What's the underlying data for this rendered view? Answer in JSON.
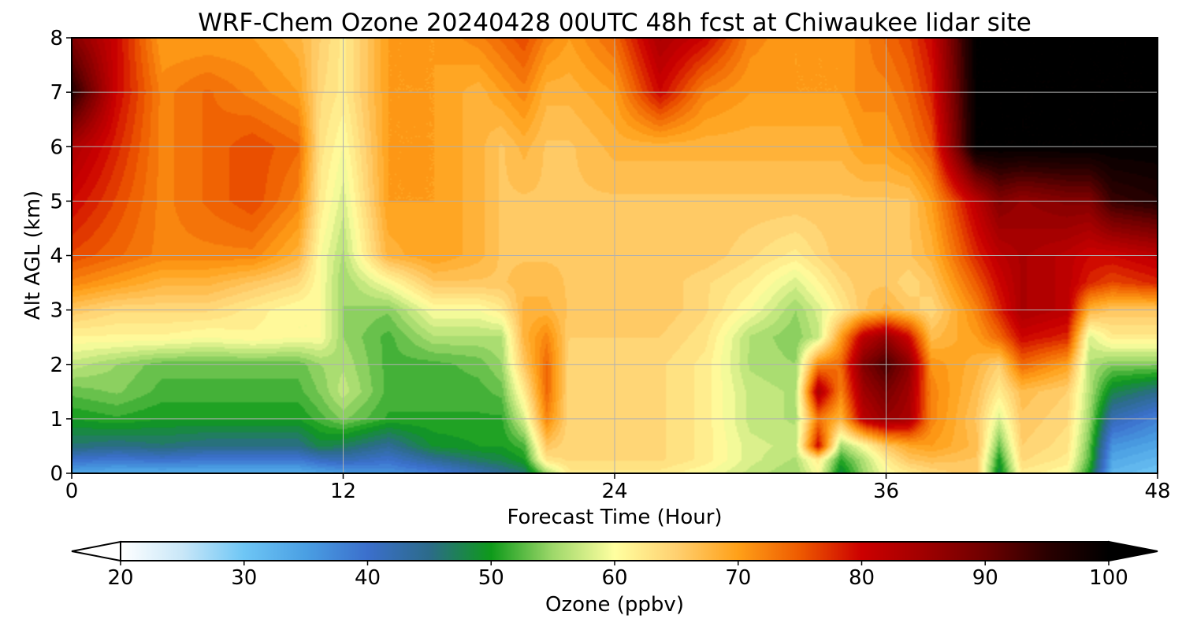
{
  "chart_data": {
    "type": "heatmap",
    "title": "WRF-Chem Ozone  20240428 00UTC 48h fcst at Chiwaukee lidar site",
    "xlabel": "Forecast Time (Hour)",
    "ylabel": "Alt AGL (km)",
    "xlim": [
      0,
      48
    ],
    "ylim": [
      0,
      8
    ],
    "x_ticks": [
      0,
      12,
      24,
      36,
      48
    ],
    "y_ticks": [
      0,
      1,
      2,
      3,
      4,
      5,
      6,
      7,
      8
    ],
    "grid": true,
    "colorbar": {
      "label": "Ozone  (ppbv)",
      "orientation": "horizontal",
      "placement": "bottom",
      "min": 20,
      "max": 100,
      "extend": "both",
      "ticks": [
        20,
        30,
        40,
        50,
        60,
        70,
        80,
        90,
        100
      ],
      "color_stops": [
        [
          20,
          "#ffffff"
        ],
        [
          25,
          "#c9e7f8"
        ],
        [
          30,
          "#6ec6f5"
        ],
        [
          35,
          "#4a9fe3"
        ],
        [
          40,
          "#3b6fcc"
        ],
        [
          45,
          "#2c6b8a"
        ],
        [
          50,
          "#0e9a1a"
        ],
        [
          55,
          "#9ed86a"
        ],
        [
          60,
          "#ffffa0"
        ],
        [
          65,
          "#ffd070"
        ],
        [
          70,
          "#ffa018"
        ],
        [
          75,
          "#ee5a00"
        ],
        [
          80,
          "#cc0000"
        ],
        [
          85,
          "#a00000"
        ],
        [
          90,
          "#6e0000"
        ],
        [
          95,
          "#2a0000"
        ],
        [
          100,
          "#000000"
        ]
      ]
    },
    "x": [
      0,
      2,
      4,
      6,
      8,
      10,
      11,
      12,
      14,
      16,
      18,
      19,
      20,
      21,
      22,
      24,
      26,
      28,
      30,
      32,
      33,
      34,
      35,
      36,
      37,
      38,
      40,
      41,
      42,
      44,
      45,
      46,
      48
    ],
    "y": [
      0,
      0.25,
      0.5,
      1,
      1.5,
      2,
      2.5,
      3,
      3.5,
      4,
      5,
      6,
      7,
      8
    ],
    "z": [
      [
        34,
        33,
        33,
        33,
        33,
        33,
        34,
        35,
        36,
        38,
        42,
        44,
        46,
        55,
        62,
        62,
        62,
        60,
        57,
        55,
        60,
        48,
        55,
        60,
        62,
        64,
        66,
        48,
        62,
        60,
        50,
        32,
        30
      ],
      [
        40,
        39,
        40,
        39,
        39,
        39,
        41,
        42,
        40,
        44,
        47,
        48,
        50,
        63,
        64,
        64,
        64,
        62,
        58,
        56,
        62,
        51,
        56,
        62,
        66,
        67,
        66,
        50,
        64,
        62,
        52,
        34,
        32
      ],
      [
        46,
        45,
        46,
        45,
        45,
        45,
        48,
        47,
        44,
        49,
        50,
        50,
        52,
        66,
        64,
        64,
        64,
        62,
        58,
        57,
        80,
        55,
        60,
        66,
        69,
        70,
        67,
        53,
        65,
        63,
        53,
        36,
        34
      ],
      [
        50,
        51,
        50,
        50,
        50,
        50,
        52,
        54,
        51,
        51,
        51,
        51,
        58,
        72,
        64,
        64,
        64,
        62,
        57,
        56,
        73,
        68,
        82,
        86,
        84,
        72,
        66,
        58,
        66,
        64,
        55,
        42,
        38
      ],
      [
        53,
        54,
        52,
        52,
        52,
        52,
        54,
        57,
        52,
        52,
        52,
        53,
        62,
        74,
        64,
        64,
        64,
        62,
        57,
        56,
        84,
        72,
        85,
        89,
        85,
        72,
        67,
        62,
        67,
        65,
        56,
        48,
        45
      ],
      [
        57,
        55,
        53,
        53,
        53,
        53,
        55,
        56,
        52,
        52,
        53,
        55,
        66,
        74,
        64,
        64,
        64,
        62,
        56,
        55,
        72,
        74,
        88,
        93,
        87,
        71,
        68,
        65,
        74,
        70,
        56,
        54,
        54
      ],
      [
        61,
        61,
        61,
        60,
        61,
        60,
        60,
        55,
        52,
        56,
        56,
        56,
        68,
        72,
        65,
        65,
        65,
        63,
        56,
        54,
        57,
        70,
        82,
        86,
        80,
        67,
        70,
        74,
        80,
        78,
        58,
        62,
        62
      ],
      [
        66,
        64,
        64,
        64,
        62,
        60,
        60,
        55,
        54,
        60,
        60,
        62,
        68,
        68,
        66,
        66,
        66,
        64,
        60,
        55,
        58,
        62,
        66,
        68,
        66,
        64,
        72,
        78,
        84,
        82,
        68,
        66,
        66
      ],
      [
        72,
        70,
        68,
        68,
        66,
        64,
        60,
        55,
        60,
        66,
        66,
        66,
        67,
        67,
        66,
        66,
        66,
        64,
        62,
        58,
        61,
        64,
        66,
        66,
        64,
        66,
        75,
        80,
        84,
        82,
        78,
        76,
        78
      ],
      [
        76,
        74,
        72,
        72,
        72,
        68,
        60,
        56,
        68,
        70,
        68,
        66,
        66,
        66,
        66,
        66,
        66,
        66,
        64,
        62,
        64,
        66,
        66,
        66,
        66,
        68,
        78,
        82,
        84,
        82,
        80,
        80,
        82
      ],
      [
        80,
        76,
        72,
        74,
        76,
        72,
        62,
        58,
        70,
        70,
        68,
        66,
        66,
        66,
        66,
        66,
        66,
        66,
        66,
        66,
        66,
        66,
        66,
        66,
        66,
        70,
        82,
        88,
        86,
        88,
        88,
        94,
        96
      ],
      [
        84,
        78,
        72,
        74,
        76,
        74,
        63,
        60,
        70,
        70,
        68,
        66,
        68,
        66,
        66,
        68,
        68,
        68,
        68,
        68,
        68,
        68,
        70,
        70,
        72,
        75,
        100,
        100,
        100,
        100,
        100,
        100,
        100
      ],
      [
        96,
        80,
        72,
        74,
        72,
        70,
        64,
        62,
        70,
        70,
        68,
        70,
        72,
        68,
        68,
        70,
        80,
        72,
        70,
        70,
        70,
        70,
        72,
        72,
        74,
        78,
        100,
        100,
        100,
        100,
        100,
        100,
        100
      ],
      [
        88,
        80,
        70,
        70,
        70,
        68,
        65,
        62,
        70,
        70,
        72,
        74,
        76,
        72,
        70,
        74,
        84,
        80,
        72,
        70,
        70,
        70,
        72,
        74,
        76,
        80,
        100,
        100,
        100,
        100,
        100,
        100,
        100
      ]
    ]
  }
}
